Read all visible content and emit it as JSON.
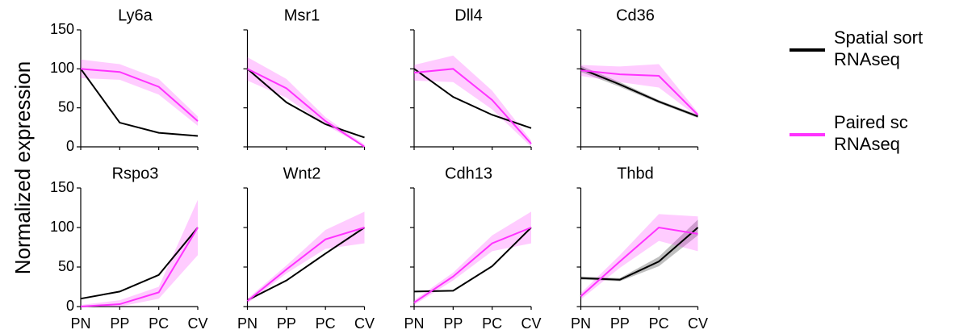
{
  "y_label": "Normalized expression",
  "chart_data": [
    {
      "type": "line",
      "title": "Ly6a",
      "categories": [
        "PN",
        "PP",
        "PC",
        "CV"
      ],
      "ylim": [
        0,
        150
      ],
      "yticks": [
        0,
        50,
        100,
        150
      ],
      "series": [
        {
          "name": "Spatial sort RNAseq",
          "color": "#000000",
          "values": [
            100,
            31,
            18,
            14
          ]
        },
        {
          "name": "Paired sc RNAseq",
          "color": "#ff33ff",
          "values": [
            100,
            96,
            77,
            33
          ],
          "lower": [
            88,
            86,
            67,
            27
          ],
          "upper": [
            112,
            106,
            87,
            39
          ]
        }
      ]
    },
    {
      "type": "line",
      "title": "Msr1",
      "categories": [
        "PN",
        "PP",
        "PC",
        "CV"
      ],
      "ylim": [
        0,
        150
      ],
      "yticks": [
        0,
        50,
        100,
        150
      ],
      "series": [
        {
          "name": "Spatial sort RNAseq",
          "color": "#000000",
          "values": [
            100,
            57,
            29,
            12
          ]
        },
        {
          "name": "Paired sc RNAseq",
          "color": "#ff33ff",
          "values": [
            100,
            75,
            33,
            0
          ],
          "lower": [
            85,
            63,
            28,
            0
          ],
          "upper": [
            115,
            87,
            38,
            3
          ]
        }
      ]
    },
    {
      "type": "line",
      "title": "Dll4",
      "categories": [
        "PN",
        "PP",
        "PC",
        "CV"
      ],
      "ylim": [
        0,
        150
      ],
      "yticks": [
        0,
        50,
        100,
        150
      ],
      "series": [
        {
          "name": "Spatial sort RNAseq",
          "color": "#000000",
          "values": [
            100,
            64,
            41,
            24
          ]
        },
        {
          "name": "Paired sc RNAseq",
          "color": "#ff33ff",
          "values": [
            95,
            100,
            60,
            4
          ],
          "lower": [
            85,
            83,
            48,
            0
          ],
          "upper": [
            105,
            117,
            72,
            8
          ]
        }
      ]
    },
    {
      "type": "line",
      "title": "Cd36",
      "categories": [
        "PN",
        "PP",
        "PC",
        "CV"
      ],
      "ylim": [
        0,
        150
      ],
      "yticks": [
        0,
        50,
        100,
        150
      ],
      "series": [
        {
          "name": "Spatial sort RNAseq",
          "color": "#000000",
          "values": [
            100,
            80,
            58,
            39
          ],
          "lower": [
            96,
            77,
            56,
            37
          ],
          "upper": [
            104,
            83,
            60,
            41
          ]
        },
        {
          "name": "Paired sc RNAseq",
          "color": "#ff33ff",
          "values": [
            98,
            93,
            91,
            41
          ],
          "lower": [
            91,
            83,
            76,
            38
          ],
          "upper": [
            105,
            103,
            106,
            44
          ]
        }
      ]
    },
    {
      "type": "line",
      "title": "Rspo3",
      "categories": [
        "PN",
        "PP",
        "PC",
        "CV"
      ],
      "ylim": [
        0,
        150
      ],
      "yticks": [
        0,
        50,
        100,
        150
      ],
      "series": [
        {
          "name": "Spatial sort RNAseq",
          "color": "#000000",
          "values": [
            10,
            19,
            40,
            100
          ]
        },
        {
          "name": "Paired sc RNAseq",
          "color": "#ff33ff",
          "values": [
            0,
            3,
            18,
            100
          ],
          "lower": [
            0,
            0,
            10,
            65
          ],
          "upper": [
            2,
            8,
            25,
            135
          ]
        }
      ]
    },
    {
      "type": "line",
      "title": "Wnt2",
      "categories": [
        "PN",
        "PP",
        "PC",
        "CV"
      ],
      "ylim": [
        0,
        150
      ],
      "yticks": [
        0,
        50,
        100,
        150
      ],
      "series": [
        {
          "name": "Spatial sort RNAseq",
          "color": "#000000",
          "values": [
            8,
            33,
            67,
            100
          ]
        },
        {
          "name": "Paired sc RNAseq",
          "color": "#ff33ff",
          "values": [
            7,
            47,
            85,
            100
          ],
          "lower": [
            4,
            42,
            73,
            80
          ],
          "upper": [
            10,
            52,
            97,
            120
          ]
        }
      ]
    },
    {
      "type": "line",
      "title": "Cdh13",
      "categories": [
        "PN",
        "PP",
        "PC",
        "CV"
      ],
      "ylim": [
        0,
        150
      ],
      "yticks": [
        0,
        50,
        100,
        150
      ],
      "series": [
        {
          "name": "Spatial sort RNAseq",
          "color": "#000000",
          "values": [
            19,
            20,
            51,
            100
          ]
        },
        {
          "name": "Paired sc RNAseq",
          "color": "#ff33ff",
          "values": [
            5,
            38,
            80,
            100
          ],
          "lower": [
            2,
            33,
            70,
            80
          ],
          "upper": [
            8,
            43,
            90,
            120
          ]
        }
      ]
    },
    {
      "type": "line",
      "title": "Thbd",
      "categories": [
        "PN",
        "PP",
        "PC",
        "CV"
      ],
      "ylim": [
        0,
        150
      ],
      "yticks": [
        0,
        50,
        100,
        150
      ],
      "series": [
        {
          "name": "Spatial sort RNAseq",
          "color": "#000000",
          "values": [
            36,
            34,
            57,
            100
          ],
          "lower": [
            34,
            32,
            51,
            90
          ],
          "upper": [
            38,
            36,
            63,
            110
          ]
        },
        {
          "name": "Paired sc RNAseq",
          "color": "#ff33ff",
          "values": [
            13,
            57,
            100,
            92
          ],
          "lower": [
            9,
            49,
            83,
            70
          ],
          "upper": [
            17,
            65,
            117,
            114
          ]
        }
      ]
    }
  ]
}
